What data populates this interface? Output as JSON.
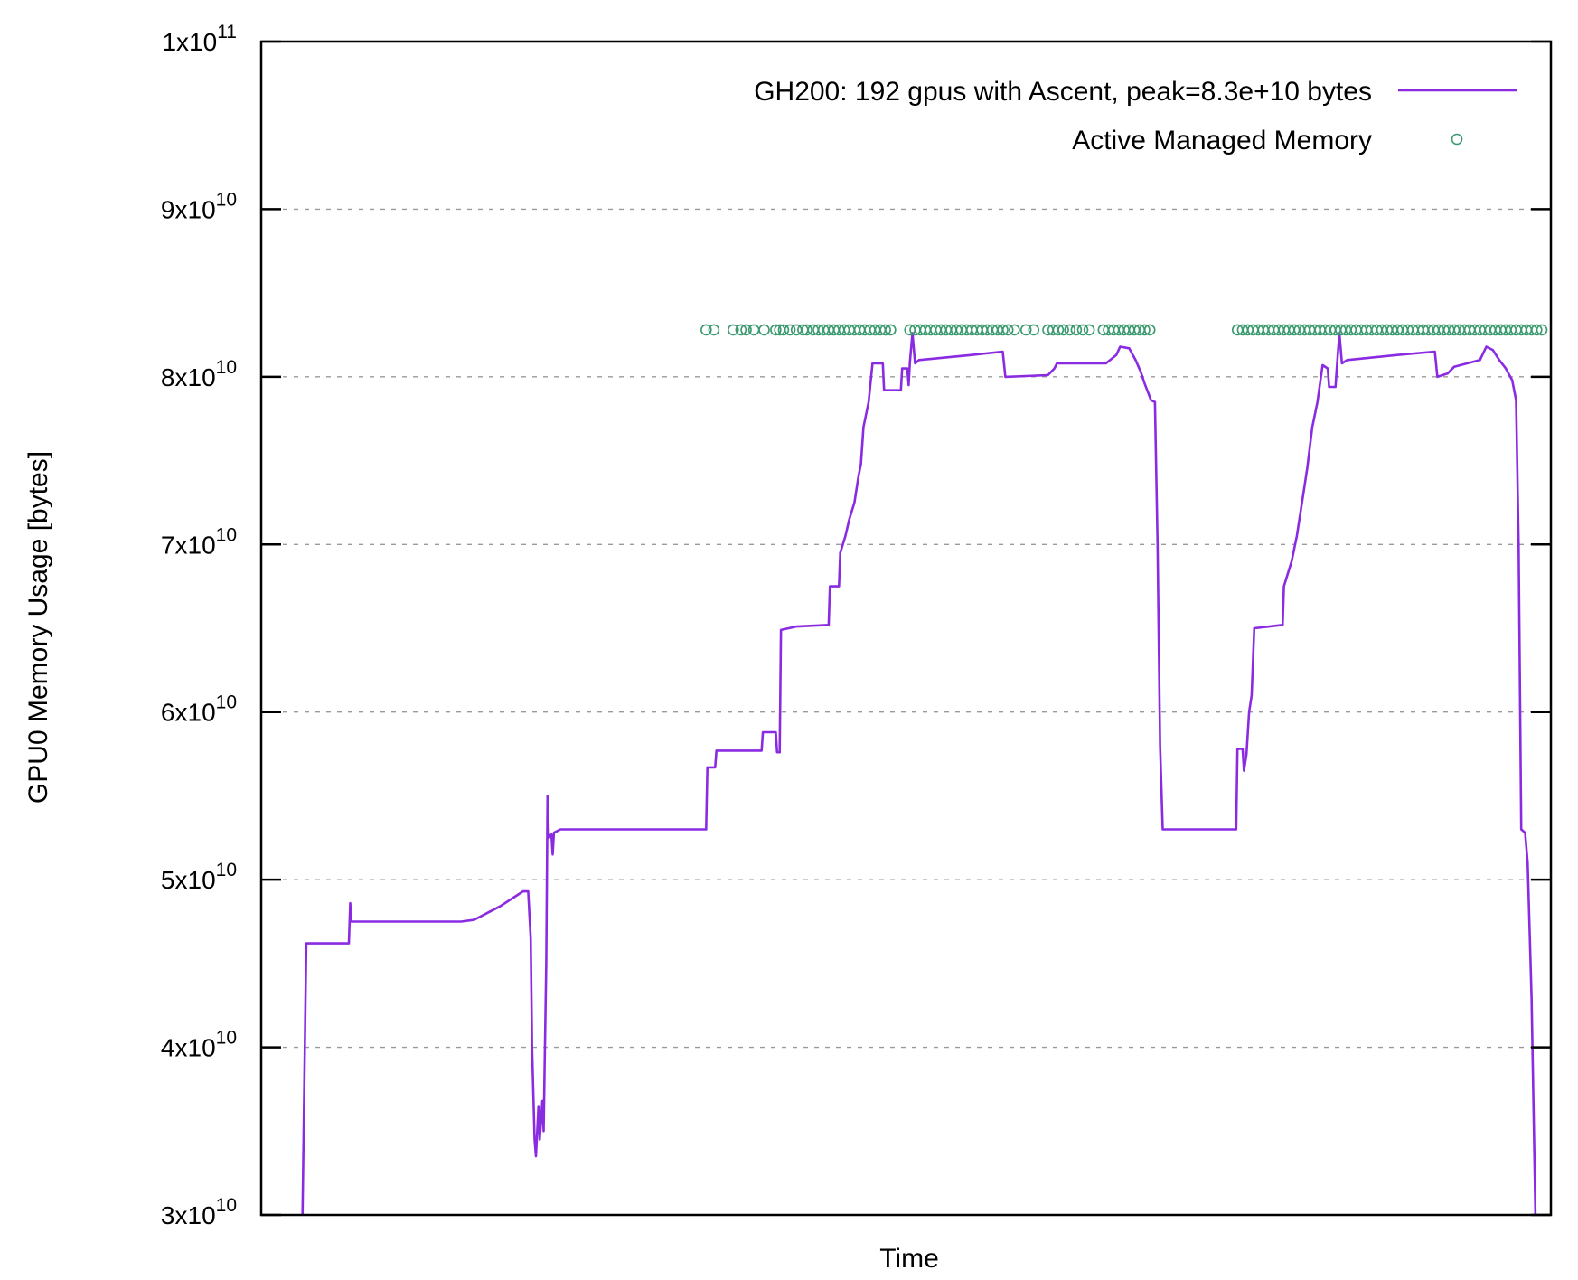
{
  "chart_data": {
    "type": "line",
    "title": "",
    "xlabel": "Time",
    "ylabel": "GPU0 Memory Usage [bytes]",
    "xlim": [
      0,
      100
    ],
    "ylim": [
      30000000000,
      100000000000
    ],
    "x_ticks_shown": false,
    "y_ticks": [
      {
        "value": 30000000000,
        "mantissa": "3x10",
        "exponent": "10"
      },
      {
        "value": 40000000000,
        "mantissa": "4x10",
        "exponent": "10"
      },
      {
        "value": 50000000000,
        "mantissa": "5x10",
        "exponent": "10"
      },
      {
        "value": 60000000000,
        "mantissa": "6x10",
        "exponent": "10"
      },
      {
        "value": 70000000000,
        "mantissa": "7x10",
        "exponent": "10"
      },
      {
        "value": 80000000000,
        "mantissa": "8x10",
        "exponent": "10"
      },
      {
        "value": 90000000000,
        "mantissa": "9x10",
        "exponent": "10"
      },
      {
        "value": 100000000000,
        "mantissa": "1x10",
        "exponent": "11"
      }
    ],
    "grid": "horizontal dashed",
    "legend_position": "top-right",
    "series": [
      {
        "name": "GH200: 192 gpus with Ascent, peak=8.3e+10 bytes",
        "style": "line",
        "color": "#8a2be2",
        "points": [
          [
            3.2,
            30000000000
          ],
          [
            3.5,
            46200000000
          ],
          [
            6.8,
            46200000000
          ],
          [
            6.9,
            48600000000
          ],
          [
            7.0,
            47500000000
          ],
          [
            15.5,
            47500000000
          ],
          [
            16.5,
            47600000000
          ],
          [
            17.5,
            48000000000
          ],
          [
            18.5,
            48400000000
          ],
          [
            19.5,
            48900000000
          ],
          [
            20.3,
            49300000000
          ],
          [
            20.7,
            49300000000
          ],
          [
            20.9,
            46500000000
          ],
          [
            21.0,
            40000000000
          ],
          [
            21.2,
            34500000000
          ],
          [
            21.3,
            33500000000
          ],
          [
            21.5,
            36500000000
          ],
          [
            21.6,
            34500000000
          ],
          [
            21.8,
            36800000000
          ],
          [
            21.9,
            35000000000
          ],
          [
            22.1,
            45000000000
          ],
          [
            22.2,
            55000000000
          ],
          [
            22.3,
            52500000000
          ],
          [
            22.5,
            52700000000
          ],
          [
            22.6,
            51500000000
          ],
          [
            22.7,
            52800000000
          ],
          [
            23.2,
            53000000000
          ],
          [
            34.5,
            53000000000
          ],
          [
            34.6,
            56700000000
          ],
          [
            35.2,
            56700000000
          ],
          [
            35.3,
            57700000000
          ],
          [
            38.8,
            57700000000
          ],
          [
            38.9,
            58800000000
          ],
          [
            39.9,
            58800000000
          ],
          [
            40.0,
            57600000000
          ],
          [
            40.2,
            57600000000
          ],
          [
            40.3,
            64900000000
          ],
          [
            41.5,
            65100000000
          ],
          [
            44.0,
            65200000000
          ],
          [
            44.1,
            67500000000
          ],
          [
            44.8,
            67500000000
          ],
          [
            44.9,
            69500000000
          ],
          [
            45.3,
            70500000000
          ],
          [
            45.6,
            71500000000
          ],
          [
            46.0,
            72500000000
          ],
          [
            46.3,
            74000000000
          ],
          [
            46.5,
            74800000000
          ],
          [
            46.7,
            77000000000
          ],
          [
            47.1,
            78500000000
          ],
          [
            47.4,
            80800000000
          ],
          [
            48.2,
            80800000000
          ],
          [
            48.3,
            79200000000
          ],
          [
            49.6,
            79200000000
          ],
          [
            49.7,
            80500000000
          ],
          [
            50.1,
            80500000000
          ],
          [
            50.2,
            79500000000
          ],
          [
            50.3,
            80900000000
          ],
          [
            50.5,
            82600000000
          ],
          [
            50.7,
            80800000000
          ],
          [
            51.0,
            81000000000
          ],
          [
            55.0,
            81300000000
          ],
          [
            57.5,
            81500000000
          ],
          [
            57.7,
            80000000000
          ],
          [
            61.0,
            80100000000
          ],
          [
            61.5,
            80500000000
          ],
          [
            61.7,
            80800000000
          ],
          [
            65.5,
            80800000000
          ],
          [
            66.3,
            81300000000
          ],
          [
            66.6,
            81800000000
          ],
          [
            67.3,
            81700000000
          ],
          [
            67.8,
            81000000000
          ],
          [
            68.2,
            80300000000
          ],
          [
            68.5,
            79600000000
          ],
          [
            69.0,
            78600000000
          ],
          [
            69.3,
            78500000000
          ],
          [
            69.5,
            70000000000
          ],
          [
            69.7,
            58000000000
          ],
          [
            69.9,
            53000000000
          ],
          [
            75.6,
            53000000000
          ],
          [
            75.7,
            57800000000
          ],
          [
            76.1,
            57800000000
          ],
          [
            76.2,
            56500000000
          ],
          [
            76.4,
            57500000000
          ],
          [
            76.6,
            60000000000
          ],
          [
            76.8,
            61000000000
          ],
          [
            77.0,
            65000000000
          ],
          [
            79.2,
            65200000000
          ],
          [
            79.3,
            67500000000
          ],
          [
            79.9,
            69000000000
          ],
          [
            80.3,
            70500000000
          ],
          [
            80.7,
            72500000000
          ],
          [
            81.1,
            74500000000
          ],
          [
            81.5,
            77000000000
          ],
          [
            81.9,
            78500000000
          ],
          [
            82.3,
            80700000000
          ],
          [
            82.7,
            80500000000
          ],
          [
            82.8,
            79400000000
          ],
          [
            83.3,
            79400000000
          ],
          [
            83.4,
            80500000000
          ],
          [
            83.6,
            82600000000
          ],
          [
            83.8,
            80800000000
          ],
          [
            84.2,
            81000000000
          ],
          [
            88.0,
            81300000000
          ],
          [
            91.0,
            81500000000
          ],
          [
            91.2,
            80000000000
          ],
          [
            92.0,
            80200000000
          ],
          [
            92.5,
            80600000000
          ],
          [
            94.5,
            81000000000
          ],
          [
            95.0,
            81800000000
          ],
          [
            95.5,
            81600000000
          ],
          [
            96.0,
            81000000000
          ],
          [
            96.5,
            80500000000
          ],
          [
            97.0,
            79800000000
          ],
          [
            97.3,
            78600000000
          ],
          [
            97.5,
            70000000000
          ],
          [
            97.7,
            53000000000
          ],
          [
            98.0,
            52800000000
          ],
          [
            98.2,
            51000000000
          ],
          [
            98.5,
            43000000000
          ],
          [
            98.8,
            30000000000
          ]
        ]
      },
      {
        "name": "Active Managed Memory",
        "style": "points",
        "color": "#3a9a6e",
        "y": 82800000000,
        "x": [
          34.5,
          35.1,
          36.6,
          37.2,
          37.6,
          38.2,
          39.0,
          39.9,
          40.2,
          40.5,
          41.0,
          41.5,
          42.0,
          42.3,
          42.8,
          43.2,
          43.6,
          44.0,
          44.4,
          44.8,
          45.2,
          45.6,
          46.0,
          46.4,
          46.8,
          47.2,
          47.6,
          48.0,
          48.4,
          48.8,
          50.3,
          50.7,
          51.1,
          51.5,
          51.9,
          52.3,
          52.7,
          53.1,
          53.5,
          53.9,
          54.3,
          54.7,
          55.1,
          55.5,
          55.9,
          56.3,
          56.7,
          57.1,
          57.5,
          57.9,
          58.4,
          59.3,
          59.9,
          61.0,
          61.4,
          61.8,
          62.2,
          62.7,
          63.2,
          63.7,
          64.2,
          65.3,
          65.7,
          66.1,
          66.5,
          66.9,
          67.3,
          67.7,
          68.1,
          68.5,
          68.9,
          75.7,
          76.1,
          76.5,
          76.9,
          77.3,
          77.7,
          78.1,
          78.5,
          78.9,
          79.3,
          79.7,
          80.1,
          80.5,
          80.9,
          81.3,
          81.7,
          82.1,
          82.5,
          82.9,
          83.3,
          83.7,
          84.1,
          84.5,
          84.9,
          85.3,
          85.7,
          86.1,
          86.5,
          86.9,
          87.3,
          87.7,
          88.1,
          88.5,
          88.9,
          89.3,
          89.7,
          90.1,
          90.5,
          90.9,
          91.3,
          91.7,
          92.1,
          92.5,
          92.9,
          93.3,
          93.7,
          94.1,
          94.5,
          94.9,
          95.3,
          95.7,
          96.1,
          96.5,
          96.9,
          97.3,
          97.7,
          98.1,
          98.5,
          98.9,
          99.3
        ]
      }
    ]
  }
}
